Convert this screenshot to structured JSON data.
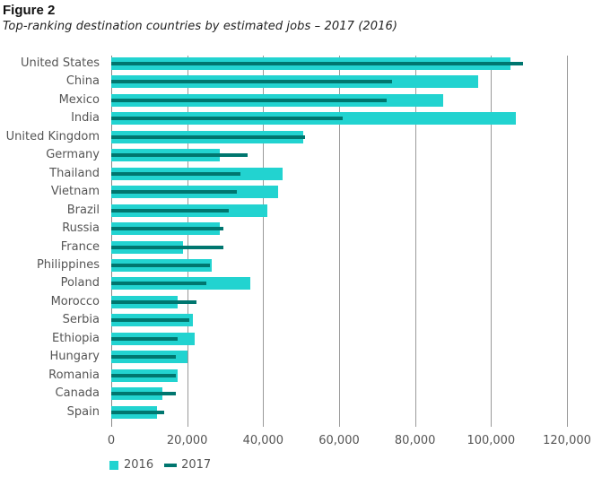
{
  "figure": {
    "label": "Figure 2",
    "title": "Top-ranking destination countries by estimated jobs – 2017 (2016)"
  },
  "colors": {
    "s2016": "#22D3D0",
    "s2017": "#00766F",
    "grid": "#9a9a9a"
  },
  "legend": {
    "s2016": "2016",
    "s2017": "2017"
  },
  "axis": {
    "ticks": [
      {
        "value": 0,
        "label": "0"
      },
      {
        "value": 20000,
        "label": "20,000"
      },
      {
        "value": 40000,
        "label": "40,000"
      },
      {
        "value": 60000,
        "label": "60,000"
      },
      {
        "value": 80000,
        "label": "80,000"
      },
      {
        "value": 100000,
        "label": "100,000"
      },
      {
        "value": 120000,
        "label": "120,000"
      }
    ]
  },
  "chart_data": {
    "type": "bar",
    "orientation": "horizontal",
    "title": "Top-ranking destination countries by estimated jobs – 2017 (2016)",
    "xlabel": "",
    "ylabel": "",
    "xlim": [
      0,
      120000
    ],
    "grid": true,
    "legend_position": "bottom-left",
    "categories": [
      "United States",
      "China",
      "Mexico",
      "India",
      "United Kingdom",
      "Germany",
      "Thailand",
      "Vietnam",
      "Brazil",
      "Russia",
      "France",
      "Philippines",
      "Poland",
      "Morocco",
      "Serbia",
      "Ethiopia",
      "Hungary",
      "Romania",
      "Canada",
      "Spain"
    ],
    "series": [
      {
        "name": "2016",
        "values": [
          105000,
          96500,
          87500,
          106500,
          50500,
          28500,
          45000,
          44000,
          41000,
          28500,
          19000,
          26500,
          36500,
          17500,
          21500,
          22000,
          20000,
          17500,
          13500,
          12000
        ]
      },
      {
        "name": "2017",
        "values": [
          108500,
          74000,
          72500,
          61000,
          51000,
          36000,
          34000,
          33000,
          31000,
          29500,
          29500,
          26000,
          25000,
          22500,
          20500,
          17500,
          17000,
          17000,
          17000,
          14000
        ]
      }
    ]
  }
}
